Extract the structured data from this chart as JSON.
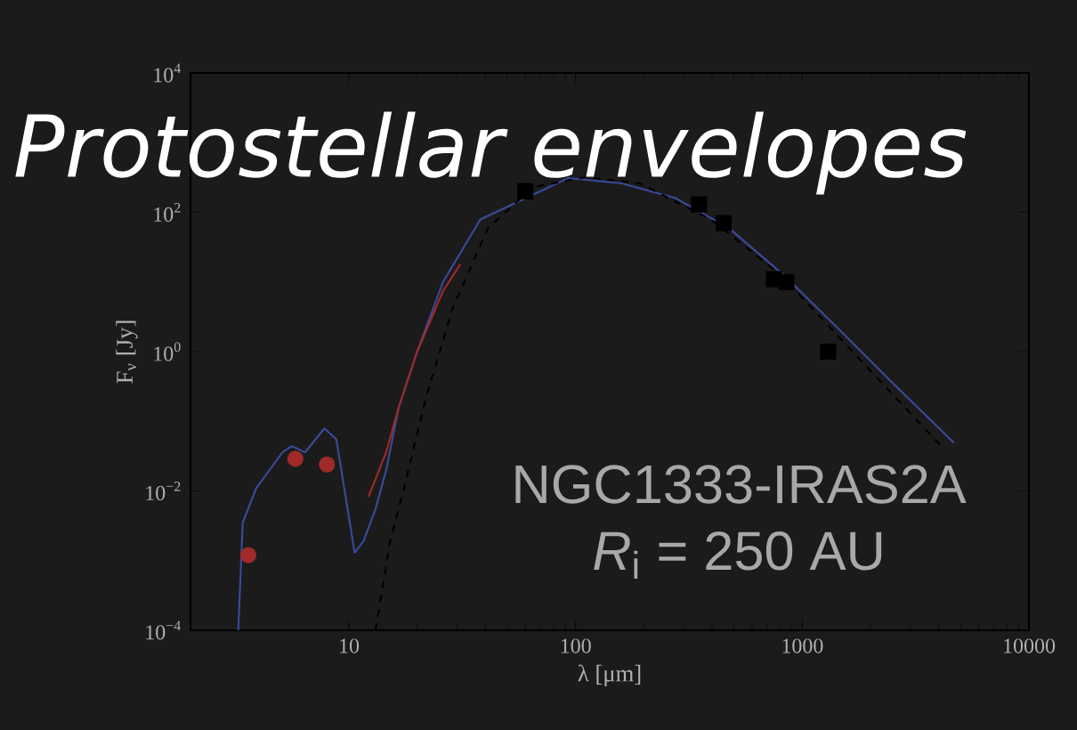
{
  "chart_data": {
    "type": "line",
    "title": "Protostellar envelopes",
    "xlabel": "λ [μm]",
    "ylabel": "F$_{ν}$ [Jy]",
    "log": "xy",
    "grid": false,
    "xlim": [
      2,
      10000
    ],
    "ylim": [
      0.0001,
      10000
    ],
    "xticks": [
      10,
      100,
      1000,
      10000
    ],
    "yticks": [
      {
        "value": 0.0001,
        "label": "10$^{−4}$"
      },
      {
        "value": 0.01,
        "label": "10$^{−2}$"
      },
      {
        "value": 1,
        "label": "10$^{0}$"
      },
      {
        "value": 100,
        "label": "10$^{2}$"
      },
      {
        "value": 10000,
        "label": "10$^{4}$"
      }
    ],
    "annotations": [
      "NGC1333-IRAS2A",
      "*R*$_{i}$ = 250 AU"
    ],
    "series": [
      {
        "color": "#3a4a9a",
        "line_style": "solid",
        "x": [
          3.25,
          3.4,
          3.9,
          5.1,
          5.6,
          6.4,
          7.8,
          8.8,
          9.8,
          10.6,
          11.6,
          13.1,
          14.6,
          16.6,
          20,
          26,
          38,
          59,
          93,
          160,
          276,
          475,
          818,
          1410,
          2430,
          4670
        ],
        "values": [
          0.0001,
          0.0035,
          0.011,
          0.036,
          0.044,
          0.036,
          0.079,
          0.055,
          0.0063,
          0.0013,
          0.0019,
          0.0055,
          0.02,
          0.16,
          1.0,
          10,
          79,
          null,
          310,
          260,
          160,
          59,
          13,
          2.3,
          0.39,
          0.049
        ]
      },
      {
        "color": "#000000",
        "line_style": "dashed",
        "x": [
          13.1,
          15.2,
          17.5,
          21.8,
          28.6,
          41,
          65,
          111,
          192,
          396,
          818,
          1690,
          4190
        ],
        "values": [
          0.0001,
          0.0019,
          0.011,
          0.21,
          4.1,
          59,
          230,
          320,
          260,
          79,
          12,
          0.95,
          0.041
        ]
      },
      {
        "color": "#a02a2a",
        "line_style": "solid",
        "x": [
          12.2,
          14.6,
          16.6,
          20,
          26,
          31
        ],
        "values": [
          0.0083,
          0.036,
          0.16,
          1.0,
          7.4,
          18
        ]
      },
      {
        "type": "scatter",
        "color": "#a02a2a",
        "marker": "circle",
        "x": [
          3.6,
          5.8,
          8
        ],
        "values": [
          0.0012,
          0.029,
          0.024
        ]
      },
      {
        "type": "scatter",
        "color": "#000000",
        "marker": "square",
        "x": [
          60,
          350,
          450,
          750,
          850,
          1300
        ],
        "values": [
          200,
          130,
          70,
          11,
          10,
          1
        ]
      }
    ]
  }
}
